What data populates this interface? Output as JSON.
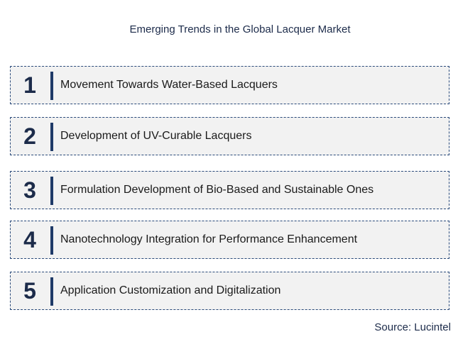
{
  "title": "Emerging Trends in the Global Lacquer Market",
  "trends": [
    {
      "number": "1",
      "label": "Movement Towards Water-Based Lacquers"
    },
    {
      "number": "2",
      "label": "Development of UV-Curable Lacquers"
    },
    {
      "number": "3",
      "label": "Formulation Development of Bio-Based and Sustainable Ones"
    },
    {
      "number": "4",
      "label": "Nanotechnology Integration for Performance Enhancement"
    },
    {
      "number": "5",
      "label": "Application  Customization and Digitalization"
    }
  ],
  "source": "Source: Lucintel",
  "colors": {
    "accent": "#1f3a68",
    "row_background": "#f2f2f2",
    "text": "#1c2b4a"
  }
}
